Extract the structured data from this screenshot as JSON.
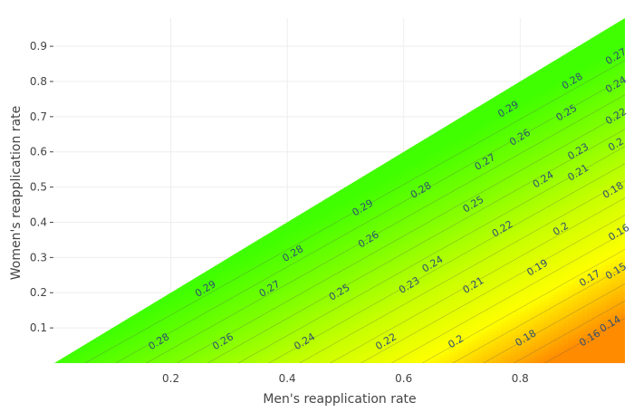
{
  "chart_data": {
    "type": "contour",
    "xlabel": "Men's reapplication rate",
    "ylabel": "Women's reapplication rate",
    "xlim": [
      0.0,
      0.98
    ],
    "ylim": [
      0.0,
      0.98
    ],
    "x_ticks": [
      0.2,
      0.4,
      0.6,
      0.8
    ],
    "y_ticks": [
      0.1,
      0.2,
      0.3,
      0.4,
      0.5,
      0.6,
      0.7,
      0.8,
      0.9
    ],
    "x_tick_labels": [
      "0.2",
      "0.4",
      "0.6",
      "0.8"
    ],
    "y_tick_labels": [
      "0.1",
      "0.2",
      "0.3",
      "0.4",
      "0.5",
      "0.6",
      "0.7",
      "0.8",
      "0.9"
    ],
    "grid": true,
    "valid_region": "women_rate <= men_rate",
    "colorscale": [
      {
        "z": 0.14,
        "color": "#ff8c00"
      },
      {
        "z": 0.18,
        "color": "#ffff00"
      },
      {
        "z": 0.22,
        "color": "#c8ff00"
      },
      {
        "z": 0.26,
        "color": "#7fff00"
      },
      {
        "z": 0.3,
        "color": "#40ff00"
      }
    ],
    "contour_levels": [
      0.14,
      0.15,
      0.16,
      0.17,
      0.18,
      0.19,
      0.2,
      0.21,
      0.22,
      0.23,
      0.24,
      0.25,
      0.26,
      0.27,
      0.28,
      0.29
    ],
    "contour_labels": [
      {
        "text": "0.28",
        "x": 0.18,
        "y": 0.06
      },
      {
        "text": "0.26",
        "x": 0.29,
        "y": 0.06
      },
      {
        "text": "0.24",
        "x": 0.43,
        "y": 0.06
      },
      {
        "text": "0.22",
        "x": 0.57,
        "y": 0.06
      },
      {
        "text": "0.2",
        "x": 0.69,
        "y": 0.06
      },
      {
        "text": "0.18",
        "x": 0.81,
        "y": 0.07
      },
      {
        "text": "0.16",
        "x": 0.92,
        "y": 0.07
      },
      {
        "text": "0.14",
        "x": 0.955,
        "y": 0.11
      },
      {
        "text": "0.29",
        "x": 0.26,
        "y": 0.21
      },
      {
        "text": "0.27",
        "x": 0.37,
        "y": 0.21
      },
      {
        "text": "0.25",
        "x": 0.49,
        "y": 0.2
      },
      {
        "text": "0.23",
        "x": 0.61,
        "y": 0.22
      },
      {
        "text": "0.21",
        "x": 0.72,
        "y": 0.22
      },
      {
        "text": "0.19",
        "x": 0.83,
        "y": 0.27
      },
      {
        "text": "0.17",
        "x": 0.92,
        "y": 0.24
      },
      {
        "text": "0.15",
        "x": 0.965,
        "y": 0.26
      },
      {
        "text": "0.28",
        "x": 0.41,
        "y": 0.31
      },
      {
        "text": "0.26",
        "x": 0.54,
        "y": 0.35
      },
      {
        "text": "0.24",
        "x": 0.65,
        "y": 0.28
      },
      {
        "text": "0.22",
        "x": 0.77,
        "y": 0.38
      },
      {
        "text": "0.2",
        "x": 0.87,
        "y": 0.38
      },
      {
        "text": "0.16",
        "x": 0.97,
        "y": 0.37
      },
      {
        "text": "0.29",
        "x": 0.53,
        "y": 0.44
      },
      {
        "text": "0.28",
        "x": 0.63,
        "y": 0.49
      },
      {
        "text": "0.25",
        "x": 0.72,
        "y": 0.45
      },
      {
        "text": "0.24",
        "x": 0.84,
        "y": 0.52
      },
      {
        "text": "0.18",
        "x": 0.96,
        "y": 0.49
      },
      {
        "text": "0.27",
        "x": 0.74,
        "y": 0.57
      },
      {
        "text": "0.23",
        "x": 0.9,
        "y": 0.6
      },
      {
        "text": "0.21",
        "x": 0.9,
        "y": 0.54
      },
      {
        "text": "0.2",
        "x": 0.965,
        "y": 0.62
      },
      {
        "text": "0.26",
        "x": 0.8,
        "y": 0.64
      },
      {
        "text": "0.29",
        "x": 0.78,
        "y": 0.72
      },
      {
        "text": "0.25",
        "x": 0.88,
        "y": 0.71
      },
      {
        "text": "0.22",
        "x": 0.965,
        "y": 0.7
      },
      {
        "text": "0.28",
        "x": 0.89,
        "y": 0.8
      },
      {
        "text": "0.24",
        "x": 0.965,
        "y": 0.79
      },
      {
        "text": "0.27",
        "x": 0.965,
        "y": 0.87
      }
    ]
  }
}
